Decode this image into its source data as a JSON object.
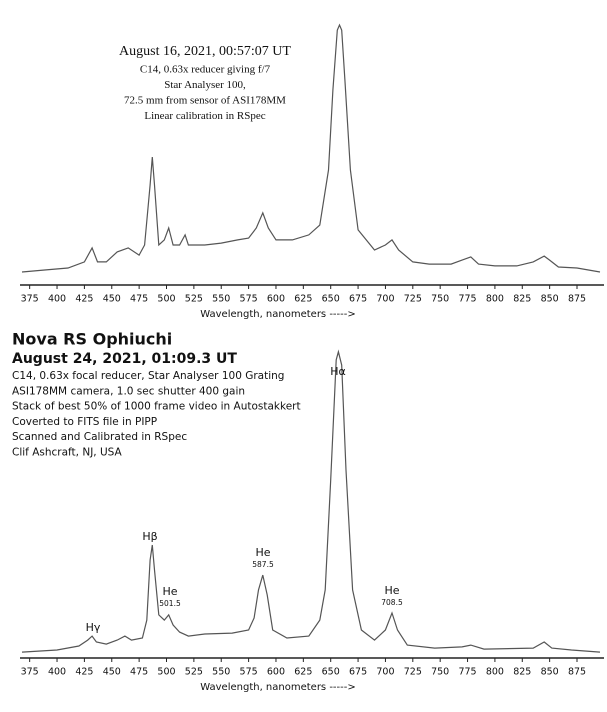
{
  "chart_data": [
    {
      "type": "line",
      "title": "August 16, 2021, 00:57:07 UT",
      "notes": [
        "C14, 0.63x reducer giving f/7",
        "Star Analyser 100,",
        "72.5 mm from sensor of ASI178MM",
        "Linear calibration in RSpec"
      ],
      "x": [
        368,
        390,
        410,
        425,
        432,
        437,
        445,
        455,
        465,
        475,
        480,
        485,
        487,
        489,
        493,
        498,
        502,
        506,
        512,
        517,
        520,
        535,
        550,
        565,
        575,
        582,
        588,
        593,
        600,
        615,
        630,
        640,
        648,
        652,
        656,
        658,
        660,
        663,
        668,
        675,
        690,
        700,
        706,
        712,
        725,
        740,
        760,
        770,
        778,
        785,
        800,
        820,
        835,
        845,
        850,
        858,
        875,
        896
      ],
      "series": [
        {
          "color": "#555555",
          "values": [
            4.9,
            5.7,
            6.4,
            8.7,
            14.0,
            8.7,
            8.7,
            12.5,
            14.0,
            11.3,
            15.1,
            37.7,
            48.3,
            37.7,
            15.1,
            17.0,
            21.5,
            15.1,
            15.1,
            18.9,
            15.1,
            15.1,
            15.8,
            17.0,
            17.7,
            21.5,
            27.2,
            21.5,
            17.0,
            17.0,
            18.9,
            22.6,
            43.4,
            73.6,
            96.2,
            98.1,
            96.2,
            77.4,
            43.4,
            20.8,
            13.2,
            15.1,
            17.0,
            13.2,
            8.7,
            7.9,
            7.9,
            9.4,
            10.6,
            7.9,
            7.2,
            7.2,
            8.7,
            10.9,
            9.4,
            6.8,
            6.4,
            4.9
          ]
        }
      ],
      "xlim": [
        368,
        896
      ],
      "ylim": [
        0,
        100
      ],
      "xticks": [
        375,
        400,
        425,
        450,
        475,
        500,
        525,
        550,
        575,
        600,
        625,
        650,
        675,
        700,
        725,
        750,
        775,
        800,
        825,
        850,
        875
      ],
      "xlabel": "Wavelength, nanometers ----->"
    },
    {
      "type": "line",
      "title": "Nova RS Ophiuchi",
      "subtitle": "August 24, 2021, 01:09.3 UT",
      "notes": [
        "C14, 0.63x focal reducer, Star Analyser 100 Grating",
        "ASI178MM camera, 1.0 sec shutter 400 gain",
        "Stack of best 50% of 1000 frame video in Autostakkert",
        "Coverted to FITS file in PIPP",
        "Scanned and Calibrated in RSpec",
        "Clif Ashcraft, NJ, USA"
      ],
      "annotations": [
        {
          "label": "Hγ"
        },
        {
          "label": "Hβ"
        },
        {
          "label": "He",
          "sublabel": "501.5"
        },
        {
          "label": "He",
          "sublabel": "587.5"
        },
        {
          "label": "Hα"
        },
        {
          "label": "He",
          "sublabel": "708.5"
        }
      ],
      "x": [
        368,
        400,
        420,
        428,
        432,
        436,
        445,
        455,
        462,
        468,
        478,
        482,
        485,
        487,
        489,
        493,
        498,
        502,
        506,
        512,
        520,
        535,
        560,
        575,
        580,
        584,
        588,
        592,
        597,
        610,
        630,
        640,
        645,
        650,
        655,
        657,
        660,
        664,
        670,
        678,
        690,
        700,
        706,
        711,
        720,
        745,
        770,
        778,
        790,
        835,
        845,
        852,
        870,
        896
      ],
      "series": [
        {
          "color": "#555555",
          "values": [
            1.9,
            2.6,
            3.9,
            5.8,
            7.1,
            5.2,
            4.5,
            5.8,
            7.1,
            5.8,
            6.5,
            12.3,
            31.8,
            36.7,
            28.6,
            14.0,
            12.3,
            14.0,
            10.7,
            8.4,
            7.1,
            7.8,
            8.1,
            9.1,
            13.0,
            22.1,
            26.9,
            20.5,
            9.1,
            6.5,
            7.1,
            12.3,
            22.1,
            57.8,
            96.8,
            99.4,
            95.1,
            61.0,
            22.1,
            9.1,
            5.8,
            9.1,
            14.6,
            9.1,
            4.2,
            3.2,
            3.6,
            4.2,
            2.9,
            3.2,
            5.2,
            3.2,
            2.6,
            1.9
          ]
        }
      ],
      "xlim": [
        368,
        896
      ],
      "ylim": [
        0,
        100
      ],
      "xticks": [
        375,
        400,
        425,
        450,
        475,
        500,
        525,
        550,
        575,
        600,
        625,
        650,
        675,
        700,
        725,
        750,
        775,
        800,
        825,
        850,
        875
      ],
      "xlabel": "Wavelength, nanometers ----->"
    }
  ]
}
